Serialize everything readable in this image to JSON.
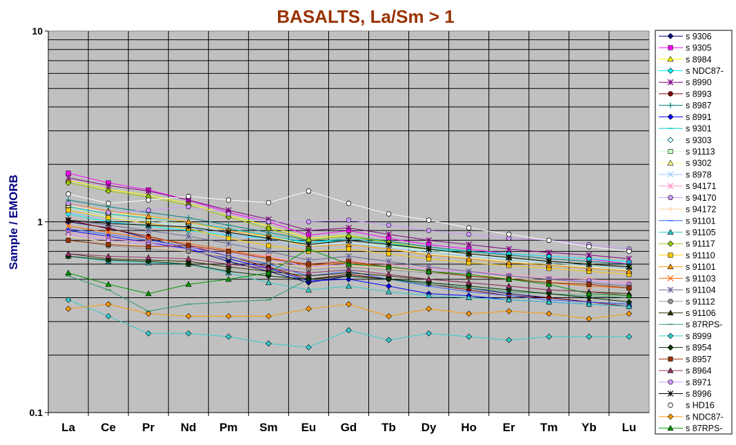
{
  "chart_data": {
    "type": "line",
    "title": "BASALTS, La/Sm > 1",
    "xlabel": "",
    "ylabel": "Sample / EMORB",
    "y_scale": "log",
    "ylim": [
      0.1,
      10
    ],
    "y_ticks": [
      "0.1",
      "1",
      "10"
    ],
    "categories": [
      "La",
      "Ce",
      "Pr",
      "Nd",
      "Pm",
      "Sm",
      "Eu",
      "Gd",
      "Tb",
      "Dy",
      "Ho",
      "Er",
      "Tm",
      "Yb",
      "Lu"
    ],
    "grid": true,
    "plot_background": "#c0c0c0",
    "legend_position": "right",
    "series": [
      {
        "name": "s 9306",
        "color": "#000080",
        "marker": "diamond",
        "values": [
          1.0,
          0.93,
          0.82,
          0.72,
          0.62,
          0.55,
          0.48,
          0.52,
          0.5,
          0.47,
          0.45,
          0.42,
          0.4,
          0.38,
          0.37
        ]
      },
      {
        "name": "s 9305",
        "color": "#ff00ff",
        "marker": "square",
        "values": [
          1.8,
          1.6,
          1.47,
          1.3,
          1.12,
          1.0,
          0.85,
          0.9,
          0.82,
          0.76,
          0.72,
          0.68,
          0.66,
          0.64,
          0.6
        ]
      },
      {
        "name": "s 8984",
        "color": "#ffff00",
        "marker": "triangle",
        "values": [
          1.65,
          1.48,
          1.38,
          1.25,
          1.08,
          0.95,
          0.82,
          0.85,
          0.78,
          0.72,
          0.68,
          0.65,
          0.62,
          0.6,
          0.58
        ]
      },
      {
        "name": "s NDC87-",
        "color": "#00ffff",
        "marker": "diamond",
        "values": [
          1.1,
          1.0,
          0.95,
          0.9,
          0.85,
          0.82,
          0.78,
          0.8,
          0.76,
          0.72,
          0.7,
          0.68,
          0.66,
          0.64,
          0.62
        ]
      },
      {
        "name": "s 8990",
        "color": "#800080",
        "marker": "star",
        "values": [
          1.7,
          1.55,
          1.45,
          1.3,
          1.15,
          1.03,
          0.9,
          0.93,
          0.86,
          0.8,
          0.76,
          0.72,
          0.69,
          0.67,
          0.64
        ]
      },
      {
        "name": "s 8993",
        "color": "#800000",
        "marker": "circle",
        "values": [
          1.02,
          0.92,
          0.84,
          0.75,
          0.66,
          0.58,
          0.5,
          0.53,
          0.5,
          0.47,
          0.44,
          0.41,
          0.4,
          0.38,
          0.36
        ]
      },
      {
        "name": "s 8987",
        "color": "#008080",
        "marker": "plus",
        "values": [
          1.3,
          1.2,
          1.12,
          1.05,
          0.96,
          0.88,
          0.8,
          0.84,
          0.79,
          0.74,
          0.7,
          0.67,
          0.64,
          0.62,
          0.6
        ]
      },
      {
        "name": "s 8991",
        "color": "#0000ff",
        "marker": "diamond",
        "values": [
          0.9,
          0.84,
          0.78,
          0.72,
          0.64,
          0.57,
          0.49,
          0.5,
          0.46,
          0.42,
          0.41,
          0.39,
          0.38,
          0.37,
          0.36
        ]
      },
      {
        "name": "s 9301",
        "color": "#00cccc",
        "marker": "dash",
        "values": [
          1.2,
          1.1,
          1.05,
          1.0,
          0.92,
          0.85,
          0.78,
          0.82,
          0.77,
          0.72,
          0.68,
          0.65,
          0.62,
          0.6,
          0.58
        ]
      },
      {
        "name": "s 9303",
        "color": "#ccffff",
        "marker": "diamond",
        "values": [
          1.15,
          1.06,
          1.0,
          0.95,
          0.88,
          0.82,
          0.75,
          0.78,
          0.74,
          0.7,
          0.67,
          0.64,
          0.61,
          0.59,
          0.57
        ]
      },
      {
        "name": "s 91113",
        "color": "#ccffcc",
        "marker": "square",
        "values": [
          1.18,
          1.08,
          1.02,
          0.97,
          0.9,
          0.84,
          0.76,
          0.8,
          0.75,
          0.71,
          0.68,
          0.65,
          0.62,
          0.6,
          0.58
        ]
      },
      {
        "name": "s 9302",
        "color": "#ffff99",
        "marker": "triangle",
        "values": [
          1.22,
          1.12,
          1.06,
          1.0,
          0.9,
          0.83,
          0.74,
          0.76,
          0.72,
          0.68,
          0.65,
          0.62,
          0.6,
          0.58,
          0.56
        ]
      },
      {
        "name": "s 8978",
        "color": "#99ccff",
        "marker": "x",
        "values": [
          1.12,
          1.04,
          0.98,
          0.93,
          0.86,
          0.8,
          0.73,
          0.77,
          0.73,
          0.69,
          0.66,
          0.63,
          0.61,
          0.59,
          0.57
        ]
      },
      {
        "name": "s 94171",
        "color": "#ff99cc",
        "marker": "star",
        "values": [
          0.88,
          0.82,
          0.78,
          0.74,
          0.7,
          0.66,
          0.6,
          0.63,
          0.6,
          0.57,
          0.55,
          0.53,
          0.51,
          0.5,
          0.48
        ]
      },
      {
        "name": "s 94170",
        "color": "#cc99ff",
        "marker": "circle",
        "values": [
          0.86,
          0.8,
          0.76,
          0.72,
          0.68,
          0.64,
          0.58,
          0.6,
          0.58,
          0.56,
          0.54,
          0.52,
          0.5,
          0.49,
          0.47
        ]
      },
      {
        "name": "s 94172",
        "color": "#ffcc99",
        "marker": "plus",
        "values": [
          0.84,
          0.78,
          0.74,
          0.7,
          0.66,
          0.62,
          0.57,
          0.59,
          0.57,
          0.55,
          0.53,
          0.51,
          0.49,
          0.48,
          0.46
        ]
      },
      {
        "name": "s 91101",
        "color": "#3366ff",
        "marker": "dash",
        "values": [
          0.92,
          0.86,
          0.8,
          0.74,
          0.66,
          0.6,
          0.52,
          0.55,
          0.5,
          0.46,
          0.43,
          0.41,
          0.39,
          0.38,
          0.37
        ]
      },
      {
        "name": "s 91105",
        "color": "#33cccc",
        "marker": "triangle",
        "values": [
          0.66,
          0.62,
          0.61,
          0.6,
          0.54,
          0.48,
          0.44,
          0.46,
          0.43,
          0.41,
          0.4,
          0.39,
          0.38,
          0.37,
          0.36
        ]
      },
      {
        "name": "s 91117",
        "color": "#99cc00",
        "marker": "diamond",
        "values": [
          1.6,
          1.45,
          1.35,
          1.22,
          1.06,
          0.92,
          0.8,
          0.84,
          0.78,
          0.72,
          0.68,
          0.65,
          0.62,
          0.6,
          0.58
        ]
      },
      {
        "name": "s 91110",
        "color": "#ffcc00",
        "marker": "square",
        "values": [
          1.15,
          1.05,
          0.98,
          0.92,
          0.82,
          0.75,
          0.7,
          0.72,
          0.68,
          0.64,
          0.61,
          0.59,
          0.57,
          0.55,
          0.53
        ]
      },
      {
        "name": "s 91101",
        "color": "#ff9900",
        "marker": "triangle",
        "values": [
          1.25,
          1.14,
          1.07,
          1.0,
          0.9,
          0.84,
          0.74,
          0.76,
          0.72,
          0.67,
          0.64,
          0.61,
          0.59,
          0.57,
          0.55
        ]
      },
      {
        "name": "s 91103",
        "color": "#ff6600",
        "marker": "x",
        "values": [
          0.95,
          0.88,
          0.82,
          0.77,
          0.71,
          0.65,
          0.59,
          0.61,
          0.58,
          0.55,
          0.52,
          0.5,
          0.48,
          0.46,
          0.45
        ]
      },
      {
        "name": "s 91104",
        "color": "#666699",
        "marker": "star",
        "values": [
          1.02,
          0.96,
          0.9,
          0.84,
          0.77,
          0.7,
          0.63,
          0.66,
          0.62,
          0.58,
          0.55,
          0.52,
          0.5,
          0.48,
          0.46
        ]
      },
      {
        "name": "s 91112",
        "color": "#969696",
        "marker": "circle",
        "values": [
          0.8,
          0.75,
          0.72,
          0.7,
          0.65,
          0.61,
          0.56,
          0.58,
          0.56,
          0.54,
          0.52,
          0.5,
          0.48,
          0.47,
          0.45
        ]
      },
      {
        "name": "s 91106",
        "color": "#333300",
        "marker": "triangle",
        "values": [
          0.68,
          0.64,
          0.63,
          0.62,
          0.58,
          0.55,
          0.52,
          0.54,
          0.52,
          0.5,
          0.48,
          0.46,
          0.44,
          0.43,
          0.42
        ]
      },
      {
        "name": "s 87RPS-",
        "color": "#339966",
        "marker": "dash",
        "values": [
          0.52,
          0.44,
          0.34,
          0.37,
          0.38,
          0.39,
          0.5,
          0.52,
          0.5,
          0.47,
          0.45,
          0.43,
          0.42,
          0.41,
          0.4
        ]
      },
      {
        "name": "s 8999",
        "color": "#33cccc",
        "marker": "diamond",
        "values": [
          0.39,
          0.32,
          0.26,
          0.26,
          0.25,
          0.23,
          0.22,
          0.27,
          0.24,
          0.26,
          0.25,
          0.24,
          0.25,
          0.25,
          0.25
        ]
      },
      {
        "name": "s 8954",
        "color": "#003300",
        "marker": "diamond",
        "values": [
          0.66,
          0.63,
          0.62,
          0.6,
          0.55,
          0.52,
          0.5,
          0.52,
          0.5,
          0.48,
          0.46,
          0.44,
          0.42,
          0.4,
          0.38
        ]
      },
      {
        "name": "s 8957",
        "color": "#993300",
        "marker": "square",
        "values": [
          0.8,
          0.76,
          0.74,
          0.75,
          0.7,
          0.64,
          0.6,
          0.62,
          0.58,
          0.55,
          0.52,
          0.5,
          0.48,
          0.47,
          0.45
        ]
      },
      {
        "name": "s 8964",
        "color": "#993366",
        "marker": "triangle",
        "values": [
          0.68,
          0.66,
          0.65,
          0.64,
          0.6,
          0.57,
          0.54,
          0.56,
          0.53,
          0.5,
          0.48,
          0.46,
          0.44,
          0.43,
          0.41
        ]
      },
      {
        "name": "s 8971",
        "color": "#cc99ff",
        "marker": "circle",
        "values": [
          1.25,
          1.12,
          1.15,
          1.2,
          1.1,
          1.0,
          1.0,
          1.02,
          0.96,
          0.9,
          0.86,
          0.82,
          0.8,
          0.76,
          0.72
        ]
      },
      {
        "name": "s 8996",
        "color": "#000000",
        "marker": "star",
        "values": [
          1.02,
          0.98,
          0.96,
          0.94,
          0.88,
          0.82,
          0.76,
          0.8,
          0.76,
          0.72,
          0.68,
          0.65,
          0.62,
          0.6,
          0.58
        ]
      },
      {
        "name": "s HD16",
        "color": "#ffffff",
        "marker": "circle-open",
        "values": [
          1.4,
          1.25,
          1.3,
          1.36,
          1.3,
          1.26,
          1.45,
          1.25,
          1.1,
          1.02,
          0.93,
          0.86,
          0.8,
          0.74,
          0.7
        ]
      },
      {
        "name": "s NDC87-",
        "color": "#ff9900",
        "marker": "diamond",
        "values": [
          0.35,
          0.37,
          0.33,
          0.32,
          0.32,
          0.32,
          0.35,
          0.37,
          0.32,
          0.35,
          0.33,
          0.34,
          0.33,
          0.31,
          0.33
        ]
      },
      {
        "name": "s 87RPS-",
        "color": "#009900",
        "marker": "triangle",
        "values": [
          0.54,
          0.47,
          0.42,
          0.47,
          0.5,
          0.54,
          0.72,
          0.6,
          0.58,
          0.55,
          0.53,
          0.5,
          0.47,
          0.42,
          0.41
        ]
      }
    ]
  }
}
